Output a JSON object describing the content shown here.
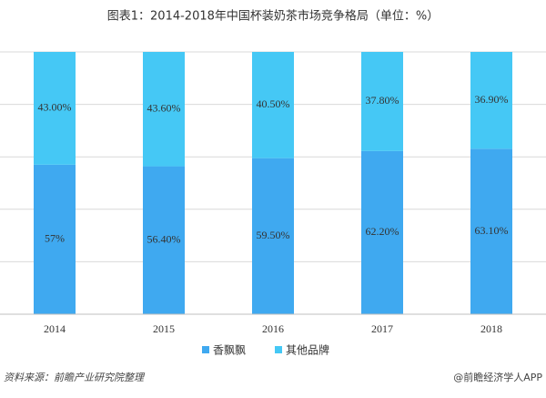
{
  "chart_data": {
    "type": "stacked_bar",
    "title": "图表1：2014-2018年中国杯装奶茶市场竞争格局（单位：%）",
    "categories": [
      "2014",
      "2015",
      "2016",
      "2017",
      "2018"
    ],
    "series": [
      {
        "name": "香飘飘",
        "color": "#3fa9f0",
        "values": [
          57,
          56.4,
          59.5,
          62.2,
          63.1
        ],
        "value_labels": [
          "57%",
          "56.40%",
          "59.50%",
          "62.20%",
          "63.10%"
        ]
      },
      {
        "name": "其他品牌",
        "color": "#45c8f5",
        "values": [
          43,
          43.6,
          40.5,
          37.8,
          36.9
        ],
        "value_labels": [
          "43.00%",
          "43.60%",
          "40.50%",
          "37.80%",
          "36.90%"
        ]
      }
    ],
    "ylim": [
      0,
      100
    ],
    "yticks": [
      0,
      20,
      40,
      60,
      80,
      100
    ],
    "grid": true,
    "source": "资料来源：前瞻产业研究院整理",
    "credit": "@前瞻经济学人APP"
  }
}
